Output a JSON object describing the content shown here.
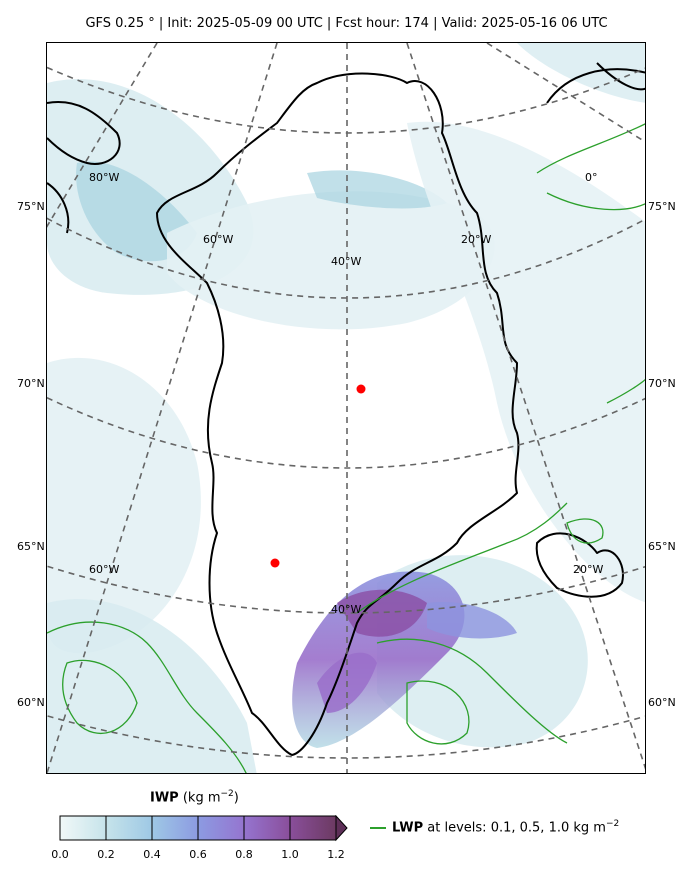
{
  "header": {
    "title": "GFS 0.25 ° | Init: 2025-05-09 00 UTC | Fcst hour: 174 | Valid: 2025-05-16 06 UTC"
  },
  "map": {
    "projection": "polar stereographic (Greenland)",
    "lat_labels_left": [
      "75°N",
      "70°N",
      "65°N",
      "60°N"
    ],
    "lat_labels_right": [
      "75°N",
      "70°N",
      "65°N",
      "60°N"
    ],
    "lon_labels": [
      "80°W",
      "60°W",
      "40°W",
      "20°W",
      "0°",
      "60°W",
      "40°W",
      "20°W"
    ],
    "gridline_color": "#666666",
    "coastline_color": "#000000",
    "lwp_contour_color": "#2ca02c",
    "markers": [
      {
        "name": "marker-north",
        "color": "#ff0000"
      },
      {
        "name": "marker-south",
        "color": "#ff0000"
      }
    ]
  },
  "colorbar": {
    "variable": "IWP",
    "units": "(kg m",
    "units_exp": "−2",
    "units_close": ")",
    "ticks": [
      "0.0",
      "0.2",
      "0.4",
      "0.6",
      "0.8",
      "1.0",
      "1.2"
    ],
    "colors": [
      "#e8f3f4",
      "#a7d3e0",
      "#8cb4e5",
      "#8d94df",
      "#9a6fca",
      "#8a4aa0",
      "#6c3060"
    ]
  },
  "lwp_legend": {
    "variable": "LWP",
    "text": "at levels: 0.1, 0.5, 1.0  kg m",
    "units_exp": "−2"
  }
}
